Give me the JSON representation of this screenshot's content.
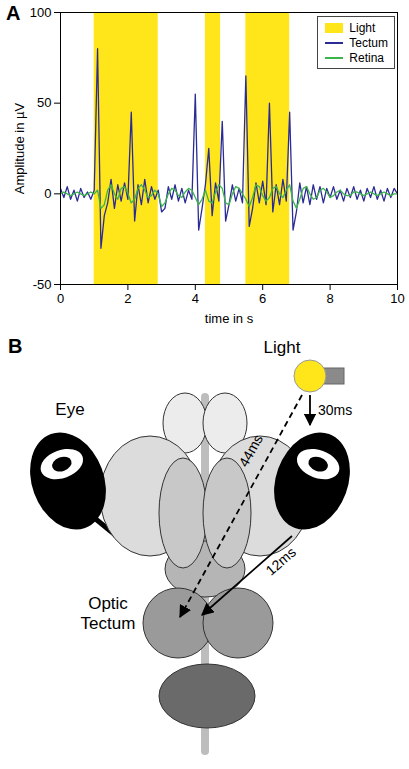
{
  "chart_data": {
    "type": "line",
    "panel_label": "A",
    "x_label": "time in s",
    "y_label": "Amplitude in µV",
    "x": [
      0,
      0.1,
      0.2,
      0.3,
      0.4,
      0.5,
      0.6,
      0.7,
      0.8,
      0.9,
      1,
      1.1,
      1.2,
      1.3,
      1.4,
      1.5,
      1.6,
      1.7,
      1.8,
      1.9,
      2,
      2.1,
      2.2,
      2.3,
      2.4,
      2.5,
      2.6,
      2.7,
      2.8,
      2.9,
      3,
      3.1,
      3.2,
      3.3,
      3.4,
      3.5,
      3.6,
      3.7,
      3.8,
      3.9,
      4,
      4.1,
      4.2,
      4.3,
      4.4,
      4.5,
      4.6,
      4.7,
      4.8,
      4.9,
      5,
      5.1,
      5.2,
      5.3,
      5.4,
      5.5,
      5.6,
      5.7,
      5.8,
      5.9,
      6,
      6.1,
      6.2,
      6.3,
      6.4,
      6.5,
      6.6,
      6.7,
      6.8,
      6.9,
      7,
      7.1,
      7.2,
      7.3,
      7.4,
      7.5,
      7.6,
      7.7,
      7.8,
      7.9,
      8,
      8.1,
      8.2,
      8.3,
      8.4,
      8.5,
      8.6,
      8.7,
      8.8,
      8.9,
      9,
      9.1,
      9.2,
      9.3,
      9.4,
      9.5,
      9.6,
      9.7,
      9.8,
      9.9,
      10
    ],
    "series": [
      {
        "name": "Tectum",
        "color": "#2b2b96",
        "values": [
          3,
          -2,
          4,
          -3,
          2,
          -4,
          3,
          -2,
          1,
          -3,
          2,
          80,
          -30,
          -12,
          -5,
          8,
          -8,
          5,
          -4,
          6,
          -3,
          45,
          -15,
          5,
          -6,
          8,
          -5,
          4,
          -3,
          2,
          -10,
          -8,
          4,
          -3,
          5,
          -4,
          3,
          -5,
          2,
          -3,
          55,
          -20,
          -8,
          5,
          25,
          -12,
          6,
          -4,
          40,
          -15,
          -6,
          5,
          -4,
          3,
          -5,
          65,
          -18,
          -8,
          6,
          -5,
          7,
          -6,
          50,
          -10,
          5,
          -6,
          8,
          -4,
          45,
          -20,
          -10,
          6,
          -5,
          4,
          -6,
          5,
          -3,
          4,
          -5,
          3,
          -2,
          4,
          -3,
          2,
          -4,
          3,
          -2,
          4,
          -3,
          2,
          -4,
          3,
          -2,
          4,
          -3,
          2,
          -4,
          3,
          -2,
          3,
          0
        ]
      },
      {
        "name": "Retina",
        "color": "#3cb44b",
        "values": [
          0,
          1,
          0,
          -1,
          0,
          1,
          0,
          -1,
          0,
          1,
          0,
          2,
          -8,
          -6,
          2,
          5,
          0,
          -3,
          3,
          4,
          0,
          -5,
          -3,
          3,
          5,
          2,
          -2,
          -1,
          2,
          0,
          -7,
          -5,
          0,
          3,
          2,
          -1,
          -2,
          1,
          3,
          2,
          -2,
          -6,
          -3,
          2,
          -4,
          -5,
          1,
          5,
          3,
          -5,
          -6,
          0,
          4,
          3,
          0,
          -3,
          -7,
          -2,
          5,
          4,
          -1,
          -4,
          -2,
          3,
          4,
          0,
          -2,
          2,
          5,
          -4,
          -8,
          -3,
          3,
          4,
          0,
          -3,
          -2,
          2,
          3,
          1,
          -2,
          -1,
          1,
          2,
          0,
          -1,
          -1,
          1,
          1,
          0,
          -1,
          0,
          1,
          0,
          -1,
          0,
          1,
          0,
          -1,
          0,
          0
        ]
      }
    ],
    "shaded": {
      "name": "Light",
      "color": "#ffe61a",
      "intervals": [
        [
          1,
          2.9
        ],
        [
          4.3,
          4.75
        ],
        [
          5.5,
          6.8
        ]
      ]
    },
    "xlim": [
      0,
      10
    ],
    "xticks": [
      0,
      2,
      4,
      6,
      8,
      10
    ],
    "ylim": [
      -50,
      100
    ],
    "yticks": [
      -50,
      0,
      50,
      100
    ],
    "legend": "top-right"
  },
  "diagram": {
    "panel_label": "B",
    "nodes": [
      {
        "label": "Light"
      },
      {
        "label": "Eye"
      },
      {
        "label": "Optic Tectum"
      }
    ],
    "edges": [
      {
        "from": "Light",
        "to": "Eye",
        "label": "30ms",
        "line_style": "solid"
      },
      {
        "from": "Light",
        "to": "Optic Tectum",
        "label": "44ms",
        "line_style": "dashed"
      },
      {
        "from": "Eye",
        "to": "Optic Tectum",
        "label": "12ms",
        "line_style": "solid"
      }
    ]
  }
}
